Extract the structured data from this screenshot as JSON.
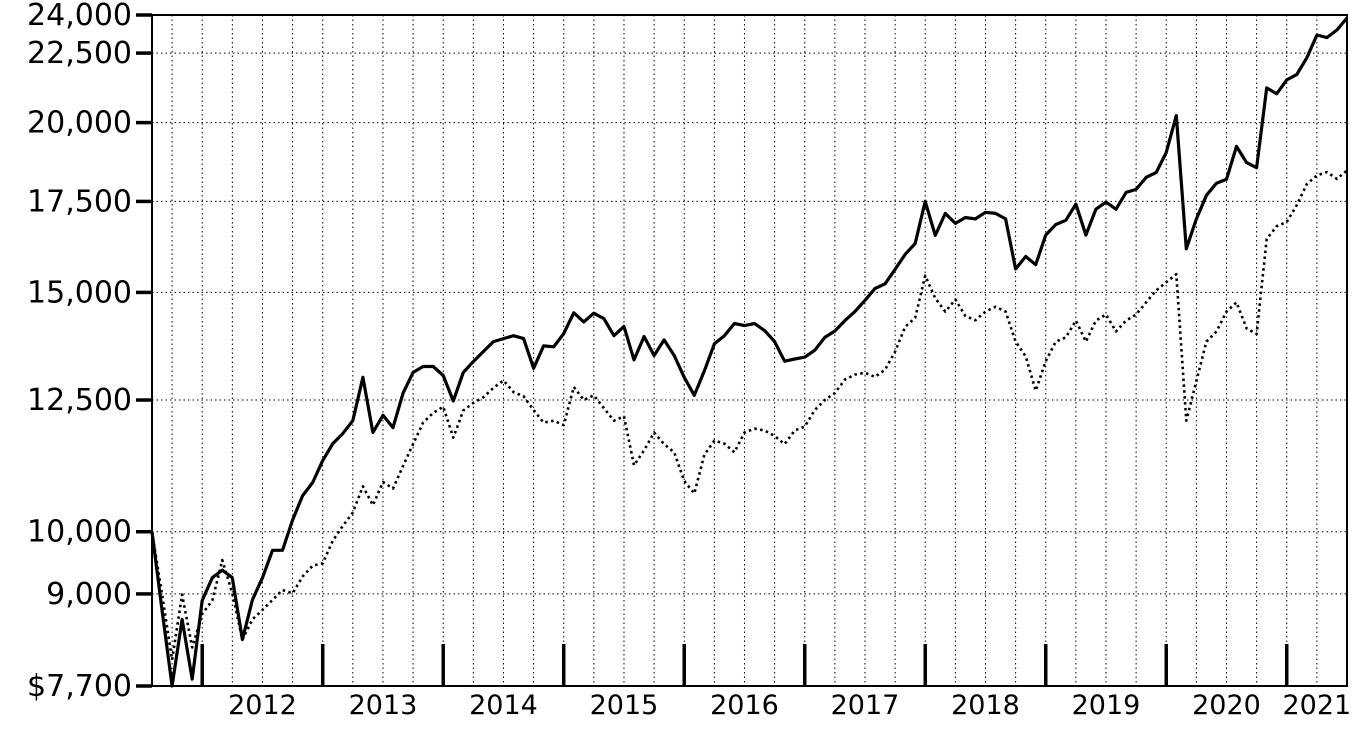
{
  "page": {
    "background_color": "#ffffff",
    "foreground_color": "#000000"
  },
  "chart_data": {
    "type": "line",
    "title": "",
    "xlabel": "",
    "ylabel": "",
    "y_scale": "log",
    "ylim": [
      7700,
      24000
    ],
    "grid": "dotted black gridlines: horizontal at each labeled y value, vertical quarterly",
    "legend": "none visible",
    "y_tick_labels": [
      "24,000",
      "22,500",
      "20,000",
      "17,500",
      "15,000",
      "12,500",
      "10,000",
      "9,000",
      "$7,700"
    ],
    "y_tick_values": [
      24000,
      22500,
      20000,
      17500,
      15000,
      12500,
      10000,
      9000,
      7700
    ],
    "x_year_labels": [
      "2012",
      "2013",
      "2014",
      "2015",
      "2016",
      "2017",
      "2018",
      "2019",
      "2020",
      "2021"
    ],
    "x_start": "2011-08",
    "x_interval": "monthly",
    "x_points": 120,
    "series": [
      {
        "name": "solid-line",
        "style": "solid",
        "color": "#000000",
        "values": [
          10000,
          8760,
          7700,
          8620,
          7790,
          8900,
          9250,
          9370,
          9250,
          8330,
          8910,
          9250,
          9690,
          9690,
          10200,
          10630,
          10870,
          11280,
          11610,
          11810,
          12070,
          12990,
          11830,
          12180,
          11930,
          12650,
          13100,
          13230,
          13230,
          13030,
          12480,
          13100,
          13340,
          13570,
          13800,
          13870,
          13940,
          13870,
          13190,
          13700,
          13680,
          13990,
          14490,
          14270,
          14480,
          14350,
          13940,
          14160,
          13380,
          13920,
          13480,
          13840,
          13480,
          12990,
          12600,
          13130,
          13750,
          13940,
          14230,
          14180,
          14230,
          14060,
          13800,
          13350,
          13400,
          13440,
          13600,
          13900,
          14050,
          14300,
          14520,
          14800,
          15100,
          15220,
          15600,
          16000,
          16300,
          17500,
          16520,
          17150,
          16860,
          17030,
          16990,
          17180,
          17150,
          16990,
          15610,
          15940,
          15720,
          16530,
          16830,
          16950,
          17420,
          16530,
          17270,
          17480,
          17270,
          17770,
          17860,
          18230,
          18380,
          19010,
          20240,
          16150,
          16990,
          17680,
          18050,
          18170,
          19210,
          18690,
          18530,
          21210,
          21000,
          21500,
          21700,
          22320,
          23200,
          23100,
          23400,
          23880
        ]
      },
      {
        "name": "dotted-line",
        "style": "dotted",
        "color": "#000000",
        "values": [
          10000,
          9000,
          8050,
          8990,
          8220,
          8700,
          8900,
          9530,
          9010,
          8330,
          8620,
          8760,
          8910,
          9060,
          9010,
          9270,
          9440,
          9480,
          9850,
          10100,
          10330,
          10800,
          10460,
          10880,
          10760,
          11180,
          11600,
          12030,
          12230,
          12360,
          11730,
          12280,
          12440,
          12560,
          12760,
          12920,
          12670,
          12580,
          12290,
          12030,
          12070,
          11980,
          12780,
          12500,
          12600,
          12330,
          12070,
          12160,
          11190,
          11480,
          11830,
          11600,
          11440,
          10900,
          10670,
          11390,
          11670,
          11610,
          11440,
          11830,
          11910,
          11870,
          11760,
          11600,
          11870,
          11950,
          12290,
          12500,
          12650,
          12940,
          13050,
          13090,
          13000,
          13160,
          13570,
          14150,
          14370,
          15430,
          14850,
          14520,
          14820,
          14410,
          14310,
          14520,
          14640,
          14520,
          13800,
          13460,
          12700,
          13350,
          13800,
          13900,
          14300,
          13800,
          14300,
          14450,
          14040,
          14300,
          14450,
          14750,
          15050,
          15260,
          15470,
          12070,
          12910,
          13800,
          14040,
          14520,
          14750,
          14110,
          13980,
          16420,
          16780,
          16900,
          17390,
          18020,
          18290,
          18390,
          18180,
          18440
        ]
      }
    ]
  }
}
